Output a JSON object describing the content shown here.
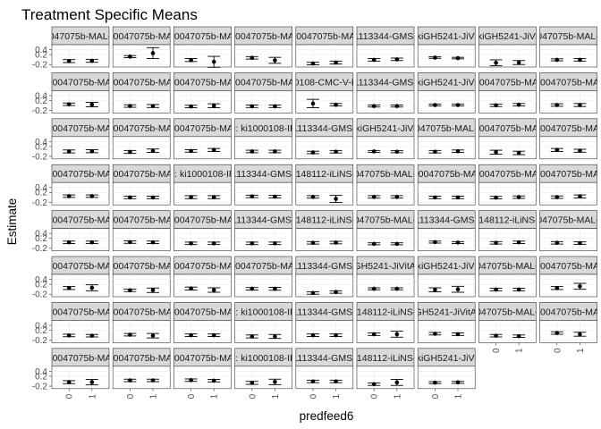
{
  "chart_data": {
    "type": "scatter",
    "facet": "wrap",
    "ncol": 9,
    "title": "Treatment Specific Means",
    "xlabel": "predfeed6",
    "ylabel": "Estimate",
    "x_categories": [
      "0",
      "1"
    ],
    "y_ticks": [
      0.4,
      0.2,
      -0.2
    ],
    "ylim": [
      -0.3,
      0.6
    ],
    "grid": true,
    "strip_fill": "#d9d9d9",
    "panel_fill": "#ffffff",
    "facets": [
      {
        "label": "ki0047075b-MAL-ED",
        "values": [
          -0.06,
          -0.05
        ],
        "errors": [
          0.06,
          0.06
        ]
      },
      {
        "label": "yid: ki0047075b-MAL-ED",
        "values": [
          0.12,
          0.26
        ],
        "errors": [
          0.04,
          0.22
        ]
      },
      {
        "label": "yid: ki0047075b-MAL-ED",
        "values": [
          -0.02,
          -0.09
        ],
        "errors": [
          0.06,
          0.22
        ]
      },
      {
        "label": "yid: ki0047075b-MAL-ED",
        "values": [
          0.07,
          -0.03
        ],
        "errors": [
          0.05,
          0.12
        ]
      },
      {
        "label": "yid: ki0047075b-MAL-ED",
        "values": [
          -0.16,
          -0.12
        ],
        "errors": [
          0.05,
          0.06
        ]
      },
      {
        "label": "yid: ki1113344-GMS-Nepal",
        "values": [
          -0.01,
          0.01
        ],
        "errors": [
          0.05,
          0.05
        ]
      },
      {
        "label": "yid: kiGH5241-JiVitA-3",
        "values": [
          0.08,
          0.06
        ],
        "errors": [
          0.03,
          0.03
        ]
      },
      {
        "label": "yid: kiGH5241-JiVitA-4",
        "values": [
          -0.13,
          -0.12
        ],
        "errors": [
          0.12,
          0.08
        ]
      },
      {
        "label": "ki0047075b-MAL-ED",
        "values": [
          -0.01,
          -0.01
        ],
        "errors": [
          0.04,
          0.05
        ]
      },
      {
        "label": "yid: ki0047075b-MAL-ED",
        "values": [
          0.05,
          0.04
        ],
        "errors": [
          0.05,
          0.09
        ]
      },
      {
        "label": "yid: ki0047075b-MAL-ED",
        "values": [
          -0.02,
          -0.02
        ],
        "errors": [
          0.05,
          0.06
        ]
      },
      {
        "label": "yid: ki0047075b-MAL-ED",
        "values": [
          -0.04,
          -0.01
        ],
        "errors": [
          0.05,
          0.08
        ]
      },
      {
        "label": "yid: ki0047075b-MAL-ED",
        "values": [
          -0.03,
          -0.03
        ],
        "errors": [
          0.05,
          0.05
        ]
      },
      {
        "label": "yid: ki1000108-CMC-V-BCS-2002",
        "values": [
          0.08,
          0.03
        ],
        "errors": [
          0.17,
          0.05
        ]
      },
      {
        "label": "yid: ki1113344-GMS-Nepal",
        "values": [
          -0.02,
          -0.02
        ],
        "errors": [
          0.04,
          0.04
        ]
      },
      {
        "label": "yid: kiGH5241-JiVitA-3",
        "values": [
          0.02,
          0.02
        ],
        "errors": [
          0.04,
          0.04
        ]
      },
      {
        "label": "yid: ki0047075b-MAL-ED",
        "values": [
          0.01,
          0.03
        ],
        "errors": [
          0.05,
          0.05
        ]
      },
      {
        "label": "yid: ki0047075b-MAL-ED",
        "values": [
          0.02,
          0.02
        ],
        "errors": [
          0.05,
          0.06
        ]
      },
      {
        "label": "yid: ki0047075b-MAL-ED",
        "values": [
          0.0,
          0.01
        ],
        "errors": [
          0.06,
          0.06
        ]
      },
      {
        "label": "yid: ki0047075b-MAL-ED",
        "values": [
          -0.02,
          0.03
        ],
        "errors": [
          0.06,
          0.07
        ]
      },
      {
        "label": "yid: ki0047075b-MAL-ED",
        "values": [
          0.02,
          0.06
        ],
        "errors": [
          0.05,
          0.06
        ]
      },
      {
        "label": "yid: ki1000108-IRC",
        "values": [
          0.0,
          0.0
        ],
        "errors": [
          0.05,
          0.05
        ]
      },
      {
        "label": "yid: ki1113344-GMS-Nepal",
        "values": [
          -0.04,
          -0.01
        ],
        "errors": [
          0.05,
          0.05
        ]
      },
      {
        "label": "yid: kiGH5241-JiVitA-3",
        "values": [
          0.0,
          -0.01
        ],
        "errors": [
          0.04,
          0.04
        ]
      },
      {
        "label": "ki0047075b-MAL-ED",
        "values": [
          -0.01,
          0.01
        ],
        "errors": [
          0.05,
          0.05
        ]
      },
      {
        "label": "yid: ki0047075b-MAL-ED",
        "values": [
          -0.03,
          -0.06
        ],
        "errors": [
          0.08,
          0.07
        ]
      },
      {
        "label": "yid: ki0047075b-MAL-ED",
        "values": [
          0.06,
          0.03
        ],
        "errors": [
          0.06,
          0.06
        ]
      },
      {
        "label": "yid: ki0047075b-MAL-ED",
        "values": [
          0.05,
          0.05
        ],
        "errors": [
          0.05,
          0.05
        ]
      },
      {
        "label": "yid: ki0047075b-MAL-ED",
        "values": [
          0.0,
          0.0
        ],
        "errors": [
          0.05,
          0.05
        ]
      },
      {
        "label": "yid: ki1000108-IRC",
        "values": [
          0.01,
          0.01
        ],
        "errors": [
          0.06,
          0.06
        ]
      },
      {
        "label": "yid: ki1113344-GMS-Nepal",
        "values": [
          0.04,
          0.03
        ],
        "errors": [
          0.05,
          0.05
        ]
      },
      {
        "label": "yid: ki1148112-iLiNS-DOSE",
        "values": [
          0.02,
          -0.06
        ],
        "errors": [
          0.05,
          0.14
        ]
      },
      {
        "label": "ki0047075b-MAL-ED",
        "values": [
          0.02,
          0.02
        ],
        "errors": [
          0.05,
          0.05
        ]
      },
      {
        "label": "yid: ki0047075b-MAL-ED",
        "values": [
          0.0,
          0.0
        ],
        "errors": [
          0.05,
          0.05
        ]
      },
      {
        "label": "yid: ki0047075b-MAL-ED",
        "values": [
          -0.01,
          0.01
        ],
        "errors": [
          0.05,
          0.05
        ]
      },
      {
        "label": "yid: ki0047075b-MAL-ED",
        "values": [
          0.01,
          0.04
        ],
        "errors": [
          0.05,
          0.06
        ]
      },
      {
        "label": "yid: ki0047075b-MAL-ED",
        "values": [
          0.04,
          0.04
        ],
        "errors": [
          0.05,
          0.05
        ]
      },
      {
        "label": "yid: ki0047075b-MAL-ED",
        "values": [
          0.05,
          0.04
        ],
        "errors": [
          0.05,
          0.05
        ]
      },
      {
        "label": "yid: ki0047075b-MAL-ED",
        "values": [
          0.0,
          0.0
        ],
        "errors": [
          0.05,
          0.05
        ]
      },
      {
        "label": "yid: ki1113344-GMS-Nepal",
        "values": [
          0.0,
          0.0
        ],
        "errors": [
          0.05,
          0.05
        ]
      },
      {
        "label": "yid: ki1148112-iLiNS-DOSE",
        "values": [
          0.02,
          0.03
        ],
        "errors": [
          0.05,
          0.05
        ]
      },
      {
        "label": "ki0047075b-MAL-ED",
        "values": [
          -0.02,
          -0.02
        ],
        "errors": [
          0.04,
          0.04
        ]
      },
      {
        "label": "yid: ki1113344-GMS-Nepal",
        "values": [
          0.05,
          0.03
        ],
        "errors": [
          0.04,
          0.04
        ]
      },
      {
        "label": "yid: ki1148112-iLiNS-DOSE",
        "values": [
          0.02,
          0.04
        ],
        "errors": [
          0.05,
          0.05
        ]
      },
      {
        "label": "ki0047075b-MAL-ED",
        "values": [
          0.02,
          0.01
        ],
        "errors": [
          0.05,
          0.05
        ]
      },
      {
        "label": "yid: ki0047075b-MAL-ED",
        "values": [
          0.05,
          0.06
        ],
        "errors": [
          0.06,
          0.12
        ]
      },
      {
        "label": "yid: ki0047075b-MAL-ED",
        "values": [
          -0.04,
          -0.04
        ],
        "errors": [
          0.05,
          0.09
        ]
      },
      {
        "label": "yid: ki0047075b-MAL-ED",
        "values": [
          0.03,
          -0.03
        ],
        "errors": [
          0.06,
          0.09
        ]
      },
      {
        "label": "yid: ki0047075b-MAL-ED",
        "values": [
          0.02,
          0.02
        ],
        "errors": [
          0.05,
          0.06
        ]
      },
      {
        "label": "yid: ki1113344-GMS-Nepal",
        "values": [
          -0.15,
          -0.11
        ],
        "errors": [
          0.05,
          0.05
        ]
      },
      {
        "label": "kiGH5241-JiVitA-3",
        "values": [
          0.02,
          0.02
        ],
        "errors": [
          0.04,
          0.04
        ]
      },
      {
        "label": "yid: kiGH5241-JiVitA-3",
        "values": [
          -0.02,
          0.0
        ],
        "errors": [
          0.08,
          0.12
        ]
      },
      {
        "label": "ki0047075b-MAL-ED",
        "values": [
          -0.01,
          -0.01
        ],
        "errors": [
          0.05,
          0.05
        ]
      },
      {
        "label": "yid: ki0047075b-MAL-ED",
        "values": [
          0.05,
          0.12
        ],
        "errors": [
          0.06,
          0.12
        ]
      },
      {
        "label": "yid: ki0047075b-MAL-ED",
        "values": [
          -0.01,
          -0.02
        ],
        "errors": [
          0.05,
          0.05
        ]
      },
      {
        "label": "yid: ki0047075b-MAL-ED",
        "values": [
          0.02,
          -0.02
        ],
        "errors": [
          0.05,
          0.09
        ]
      },
      {
        "label": "yid: ki0047075b-MAL-ED",
        "values": [
          0.0,
          0.0
        ],
        "errors": [
          0.05,
          0.05
        ]
      },
      {
        "label": "yid: ki1000108-IRC",
        "values": [
          -0.05,
          -0.05
        ],
        "errors": [
          0.06,
          0.08
        ]
      },
      {
        "label": "yid: ki1113344-GMS-Nepal",
        "values": [
          0.0,
          0.0
        ],
        "errors": [
          0.05,
          0.05
        ]
      },
      {
        "label": "yid: ki1148112-iLiNS-DOSE",
        "values": [
          0.04,
          0.04
        ],
        "errors": [
          0.05,
          0.12
        ]
      },
      {
        "label": "kiGH5241-JiVitA-3",
        "values": [
          0.06,
          0.04
        ],
        "errors": [
          0.05,
          0.05
        ]
      },
      {
        "label": "ki0047075b-MAL-ED",
        "values": [
          -0.02,
          -0.04
        ],
        "errors": [
          0.05,
          0.05
        ]
      },
      {
        "label": "yid: ki0047075b-MAL-ED",
        "values": [
          0.09,
          0.04
        ],
        "errors": [
          0.05,
          0.08
        ]
      },
      {
        "label": "yid: ki0047075b-MAL-ED",
        "values": [
          -0.04,
          -0.04
        ],
        "errors": [
          0.06,
          0.11
        ]
      },
      {
        "label": "yid: ki0047075b-MAL-ED",
        "values": [
          0.03,
          0.03
        ],
        "errors": [
          0.05,
          0.05
        ]
      },
      {
        "label": "yid: ki0047075b-MAL-ED",
        "values": [
          0.04,
          0.02
        ],
        "errors": [
          0.05,
          0.05
        ]
      },
      {
        "label": "yid: ki1000108-IRC",
        "values": [
          -0.07,
          -0.03
        ],
        "errors": [
          0.06,
          0.11
        ]
      },
      {
        "label": "yid: ki1113344-GMS-Nepal",
        "values": [
          -0.01,
          -0.01
        ],
        "errors": [
          0.05,
          0.05
        ]
      },
      {
        "label": "yid: ki1148112-iLiNS-DOSE",
        "values": [
          -0.12,
          -0.05
        ],
        "errors": [
          0.05,
          0.12
        ]
      },
      {
        "label": "yid: kiGH5241-JiVitA-3",
        "values": [
          -0.06,
          -0.05
        ],
        "errors": [
          0.04,
          0.04
        ]
      }
    ]
  }
}
